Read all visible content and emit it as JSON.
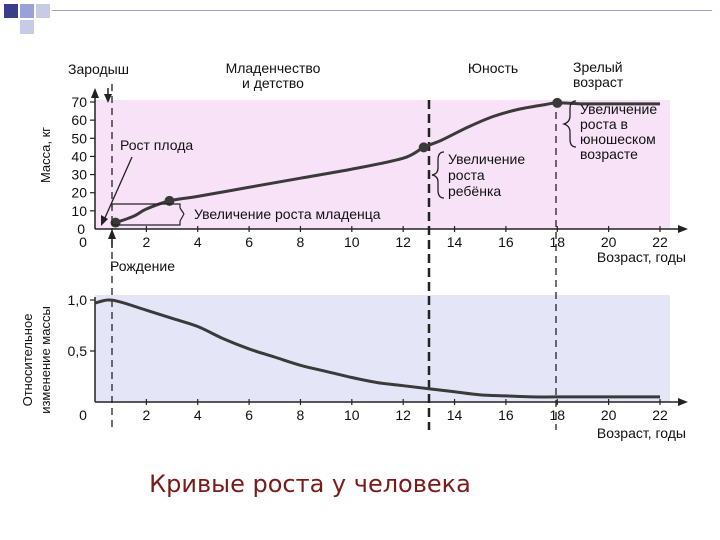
{
  "colors": {
    "top_panel_bg": "#f8e2f8",
    "bottom_panel_bg": "#e4e6f8",
    "curve": "#3a3a3a",
    "caption": "#7b1a1a",
    "deco_square": "#3c3c8a"
  },
  "caption": "Кривые роста у человека",
  "chart_data": [
    {
      "type": "line",
      "ylabel": "Масса, кг",
      "xlabel": "Возраст, годы",
      "xlim": [
        0,
        22
      ],
      "ylim": [
        0,
        70
      ],
      "x_ticks": [
        "0",
        "2",
        "4",
        "6",
        "8",
        "10",
        "12",
        "14",
        "16",
        "18",
        "20",
        "22"
      ],
      "y_ticks": [
        "10",
        "20",
        "30",
        "40",
        "50",
        "60",
        "70"
      ],
      "grid": false,
      "period_labels": [
        {
          "text": "Зародыш"
        },
        {
          "line1": "Младенчество",
          "line2": "и детство"
        },
        {
          "text": "Юность"
        },
        {
          "line1": "Зрелый",
          "line2": "возраст"
        }
      ],
      "markers": [
        {
          "x": 0.8,
          "label": "Рождение"
        },
        {
          "x": 12.8
        },
        {
          "x": 18
        }
      ],
      "annotations": {
        "fetal": "Рост плода",
        "infant": "Увеличение роста младенца",
        "child": [
          "Увеличение",
          "роста",
          "ребёнка"
        ],
        "youth": [
          "Увеличение",
          "роста в",
          "юношеском",
          "возрасте"
        ]
      },
      "series": [
        {
          "values": [
            [
              0.8,
              3.5
            ],
            [
              1.5,
              7
            ],
            [
              2.0,
              11
            ],
            [
              2.9,
              15.5
            ],
            [
              4.0,
              18
            ],
            [
              6.0,
              23
            ],
            [
              8.0,
              28
            ],
            [
              10.0,
              33
            ],
            [
              12.0,
              39
            ],
            [
              12.8,
              45
            ],
            [
              13.5,
              49
            ],
            [
              14.5,
              56
            ],
            [
              15.5,
              62
            ],
            [
              16.5,
              66
            ],
            [
              17.5,
              68.5
            ],
            [
              18.0,
              69.5
            ],
            [
              19.0,
              69
            ],
            [
              20.0,
              69
            ],
            [
              22.0,
              69
            ]
          ],
          "points": [
            [
              0.8,
              3.5
            ],
            [
              2.9,
              15.5
            ],
            [
              12.8,
              45
            ],
            [
              18.0,
              69.5
            ]
          ]
        }
      ]
    },
    {
      "type": "line",
      "ylabel": [
        "Относительное",
        "изменение массы"
      ],
      "xlabel": "Возраст, годы",
      "xlim": [
        0,
        22
      ],
      "ylim": [
        0,
        1.0
      ],
      "x_ticks": [
        "0",
        "2",
        "4",
        "6",
        "8",
        "10",
        "12",
        "14",
        "16",
        "18",
        "20",
        "22"
      ],
      "y_ticks": [
        "0,5",
        "1,0"
      ],
      "grid": false,
      "series": [
        {
          "values": [
            [
              0.0,
              0.97
            ],
            [
              0.5,
              1.0
            ],
            [
              1.0,
              0.98
            ],
            [
              2.0,
              0.9
            ],
            [
              3.0,
              0.82
            ],
            [
              4.0,
              0.74
            ],
            [
              5.0,
              0.62
            ],
            [
              6.0,
              0.52
            ],
            [
              7.0,
              0.44
            ],
            [
              8.0,
              0.36
            ],
            [
              9.0,
              0.3
            ],
            [
              10.0,
              0.24
            ],
            [
              11.0,
              0.19
            ],
            [
              12.0,
              0.16
            ],
            [
              13.0,
              0.13
            ],
            [
              14.0,
              0.1
            ],
            [
              15.0,
              0.07
            ],
            [
              16.0,
              0.06
            ],
            [
              17.0,
              0.05
            ],
            [
              18.0,
              0.05
            ],
            [
              20.0,
              0.05
            ],
            [
              22.0,
              0.05
            ]
          ]
        }
      ]
    }
  ]
}
